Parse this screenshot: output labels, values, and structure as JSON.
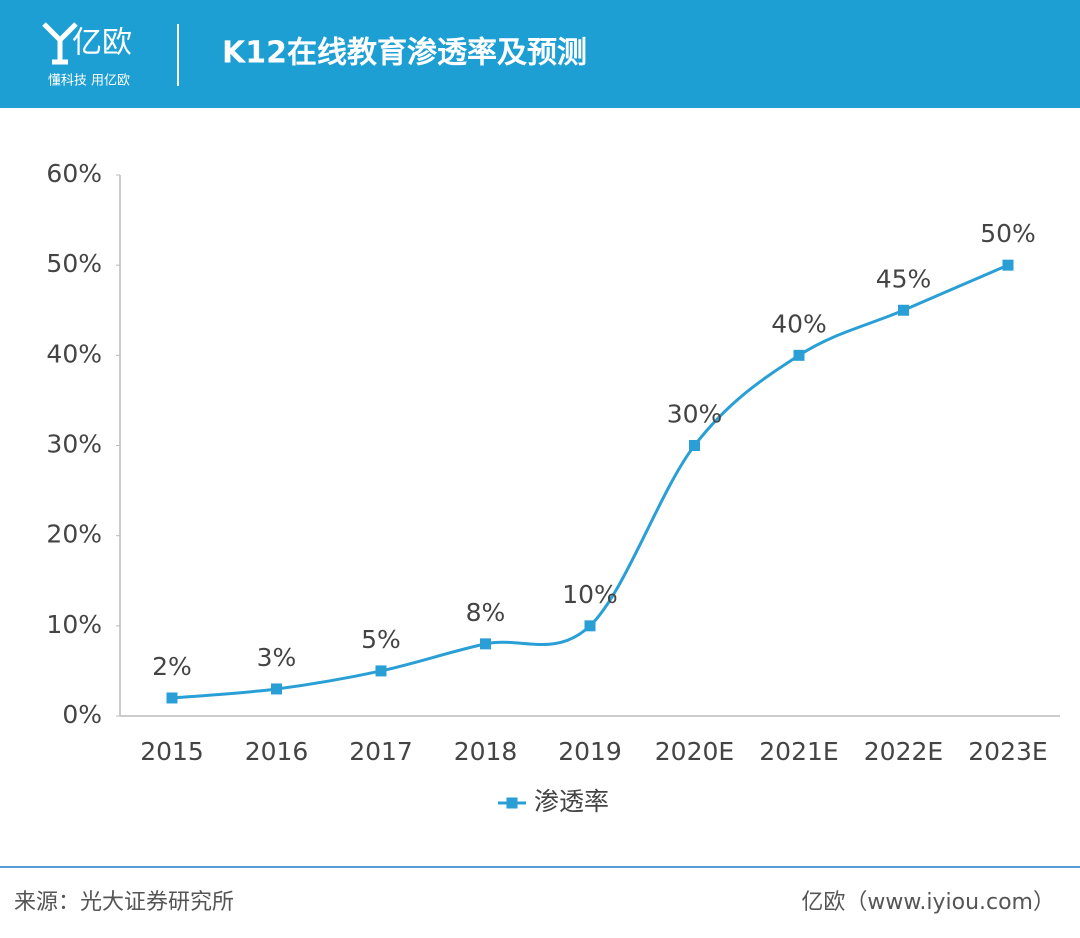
{
  "brand": {
    "logo": "亿欧",
    "slogan": "懂科技 用亿欧"
  },
  "chart_data": {
    "type": "line",
    "title": "K12在线教育渗透率及预测",
    "categories": [
      "2015",
      "2016",
      "2017",
      "2018",
      "2019",
      "2020E",
      "2021E",
      "2022E",
      "2023E"
    ],
    "series": [
      {
        "name": "渗透率",
        "color": "#2a9fd6",
        "values": [
          2,
          3,
          5,
          8,
          10,
          30,
          40,
          45,
          50
        ],
        "value_labels": [
          "2%",
          "3%",
          "5%",
          "8%",
          "10%",
          "30%",
          "40%",
          "45%",
          "50%"
        ]
      }
    ],
    "ylim": [
      0,
      60
    ],
    "yticks": [
      {
        "value": 0,
        "label": "0%"
      },
      {
        "value": 10,
        "label": "10%"
      },
      {
        "value": 20,
        "label": "20%"
      },
      {
        "value": 30,
        "label": "30%"
      },
      {
        "value": 40,
        "label": "40%"
      },
      {
        "value": 50,
        "label": "50%"
      },
      {
        "value": 60,
        "label": "60%"
      }
    ],
    "smooth": true,
    "legend": "bottom"
  },
  "footer": {
    "source": "来源：光大证券研究所",
    "credit": "亿欧（www.iyiou.com）"
  }
}
